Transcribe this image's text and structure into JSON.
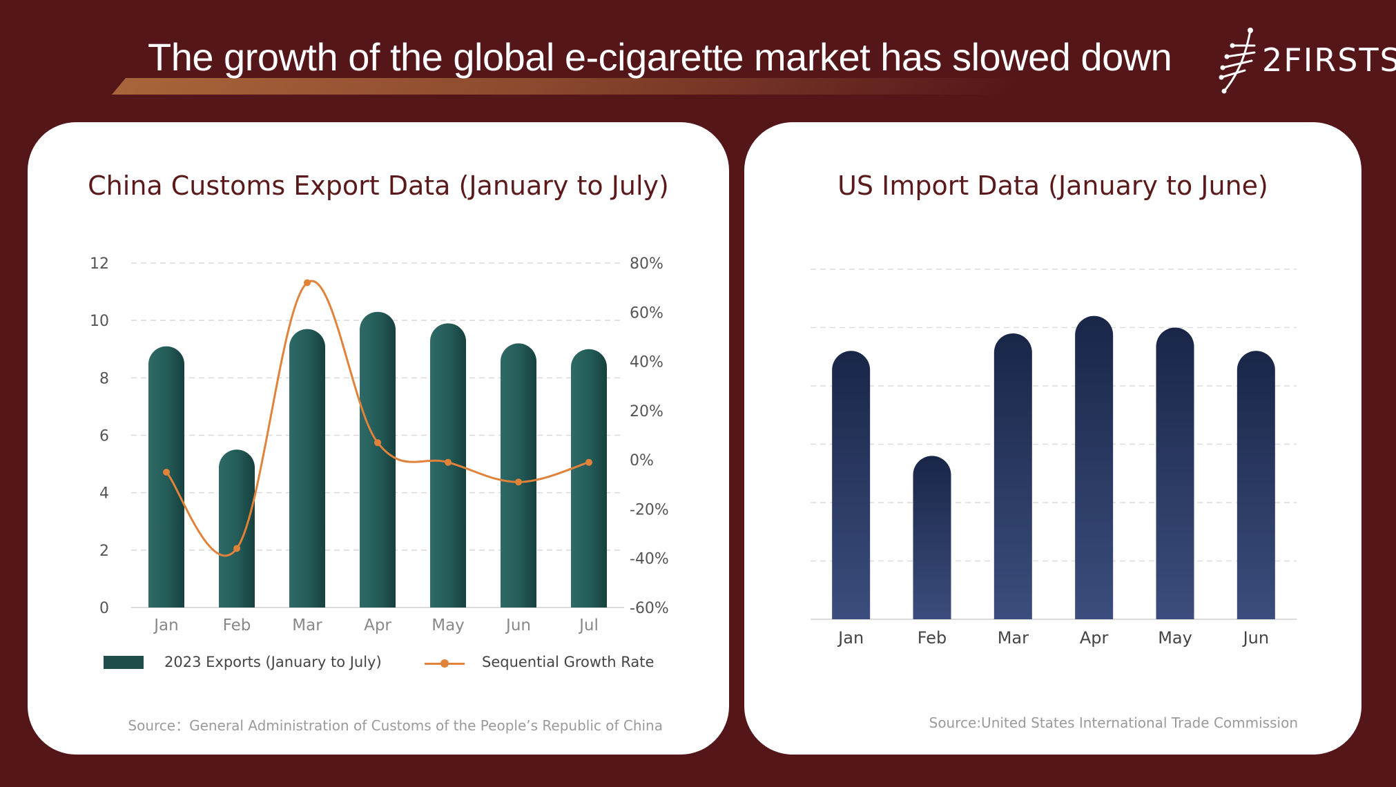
{
  "header": {
    "title": "The growth of the global e-cigarette market has slowed down",
    "logo_text": "2FIRSTS"
  },
  "colors": {
    "background": "#55161a",
    "left_bars": "#1e4d4a",
    "growth_line": "#e0823a",
    "right_bars": "#1b2a4c"
  },
  "chart_data": [
    {
      "type": "bar",
      "title": "China Customs Export Data (January to July)",
      "categories": [
        "Jan",
        "Feb",
        "Mar",
        "Apr",
        "May",
        "Jun",
        "Jul"
      ],
      "series": [
        {
          "name": "2023 Exports (January to July)",
          "type": "bar",
          "axis": "left",
          "values": [
            9.1,
            5.5,
            9.7,
            10.3,
            9.9,
            9.2,
            9.0
          ]
        },
        {
          "name": "Sequential Growth Rate",
          "type": "line",
          "axis": "right",
          "values": [
            -5,
            -36,
            72,
            7,
            -1,
            -9,
            -1
          ]
        }
      ],
      "ylim": [
        0,
        12
      ],
      "yticks": [
        0,
        2,
        4,
        6,
        8,
        10,
        12
      ],
      "y2lim": [
        -60,
        80
      ],
      "y2ticks": [
        "-60%",
        "-40%",
        "-20%",
        "0%",
        "20%",
        "40%",
        "60%",
        "80%"
      ],
      "grid": true,
      "legend": "bottom",
      "source": "Source：General Administration of Customs of the People’s Republic of China"
    },
    {
      "type": "bar",
      "title": "US Import Data (January to June)",
      "categories": [
        "Jan",
        "Feb",
        "Mar",
        "Apr",
        "May",
        "Jun"
      ],
      "values": [
        4.6,
        2.8,
        4.9,
        5.2,
        5.0,
        4.6
      ],
      "ylim": [
        0,
        6
      ],
      "grid": true,
      "source": "Source:United States International Trade Commission"
    }
  ]
}
